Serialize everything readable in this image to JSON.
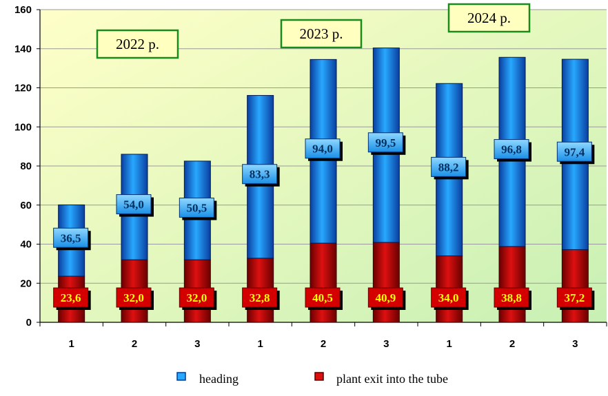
{
  "chart_data": {
    "type": "bar",
    "stacked": true,
    "categories": [
      "1",
      "2",
      "3",
      "1",
      "2",
      "3",
      "1",
      "2",
      "3"
    ],
    "groups": [
      {
        "label": "2022 р.",
        "categories": [
          "1",
          "2",
          "3"
        ]
      },
      {
        "label": "2023 р.",
        "categories": [
          "1",
          "2",
          "3"
        ]
      },
      {
        "label": "2024 р.",
        "categories": [
          "1",
          "2",
          "3"
        ]
      }
    ],
    "series": [
      {
        "name": "plant exit into the tube",
        "color": "#cc0000",
        "values": [
          23.6,
          32.0,
          32.0,
          32.8,
          40.5,
          40.9,
          34.0,
          38.8,
          37.2
        ],
        "labels": [
          "23,6",
          "32,0",
          "32,0",
          "32,8",
          "40,5",
          "40,9",
          "34,0",
          "38,8",
          "37,2"
        ]
      },
      {
        "name": "heading",
        "color": "#1e90ff",
        "values": [
          36.5,
          54.0,
          50.5,
          83.3,
          94.0,
          99.5,
          88.2,
          96.8,
          97.4
        ],
        "labels": [
          "36,5",
          "54,0",
          "50,5",
          "83,3",
          "94,0",
          "99,5",
          "88,2",
          "96,8",
          "97,4"
        ]
      }
    ],
    "yticks": [
      "0",
      "20",
      "40",
      "60",
      "80",
      "100",
      "120",
      "140",
      "160"
    ],
    "ylim": [
      0,
      160
    ],
    "grid": true,
    "legend": "bottom",
    "background_gradient": [
      "#ffffc8",
      "#c8f0b4"
    ]
  }
}
